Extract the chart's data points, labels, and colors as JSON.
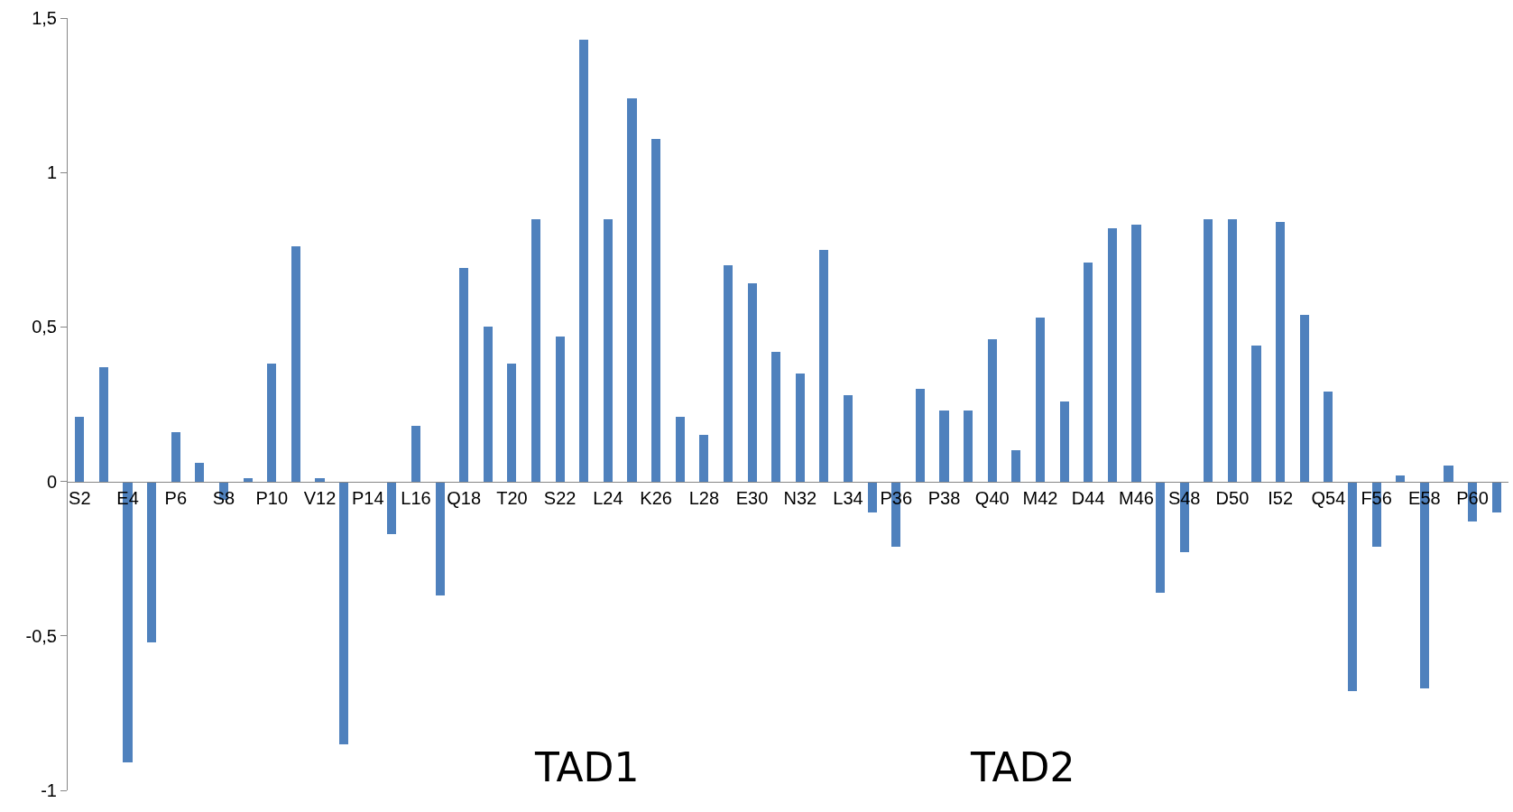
{
  "chart_data": {
    "type": "bar",
    "categories": [
      "S2",
      null,
      "E4",
      null,
      "P6",
      null,
      "S8",
      null,
      "P10",
      null,
      "V12",
      null,
      "P14",
      null,
      "L16",
      null,
      "Q18",
      null,
      "T20",
      null,
      "S22",
      null,
      "L24",
      null,
      "K26",
      null,
      "L28",
      null,
      "E30",
      null,
      "N32",
      null,
      "L34",
      null,
      "P36",
      null,
      "P38",
      null,
      "Q40",
      null,
      "M42",
      null,
      "D44",
      null,
      "M46",
      null,
      "S48",
      null,
      "D50",
      null,
      "I52",
      null,
      "Q54",
      null,
      "F56",
      null,
      "E58",
      null,
      "P60",
      null
    ],
    "values": [
      0.21,
      0.37,
      -0.91,
      -0.52,
      0.16,
      0.06,
      -0.06,
      0.01,
      0.38,
      0.76,
      0.01,
      -0.85,
      0,
      -0.17,
      0.18,
      -0.37,
      0.69,
      0.5,
      0.38,
      0.85,
      0.47,
      1.43,
      0.85,
      1.24,
      1.11,
      0.21,
      0.15,
      0.7,
      0.64,
      0.42,
      0.35,
      0.75,
      0.28,
      -0.1,
      -0.21,
      0.3,
      0.23,
      0.23,
      0.46,
      0.1,
      0.53,
      0.26,
      0.71,
      0.82,
      0.83,
      -0.36,
      -0.23,
      0.85,
      0.85,
      0.44,
      0.84,
      0.54,
      0.29,
      -0.68,
      -0.21,
      0.02,
      -0.67,
      0.05,
      -0.13,
      -0.1
    ],
    "color": "#4f81bd",
    "ylim": [
      -1,
      1.5
    ],
    "yticks": [
      {
        "value": -1,
        "label": "-1"
      },
      {
        "value": -0.5,
        "label": "-0,5"
      },
      0,
      {
        "value": 0.5,
        "label": "0,5"
      },
      1,
      {
        "value": 1.5,
        "label": "1,5"
      }
    ],
    "annotations": [
      "TAD1",
      "TAD2"
    ]
  }
}
